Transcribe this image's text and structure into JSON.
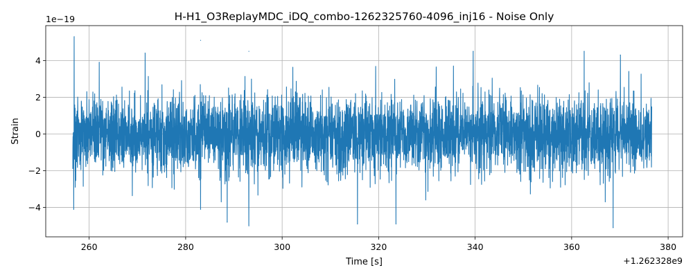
{
  "chart_data": {
    "type": "line",
    "title": "H-H1_O3ReplayMDC_iDQ_combo-1262325760-4096_inj16 - Noise Only",
    "xlabel": "Time [s]",
    "ylabel": "Strain",
    "x_offset_label": "+1.262328e9",
    "y_scale_label": "1e−19",
    "xlim": [
      251,
      383
    ],
    "ylim": [
      -5.6,
      5.9
    ],
    "x_ticks": [
      260,
      280,
      300,
      320,
      340,
      360,
      380
    ],
    "x_tick_labels": [
      "260",
      "280",
      "300",
      "320",
      "340",
      "360",
      "380"
    ],
    "y_ticks": [
      -4,
      -2,
      0,
      2,
      4
    ],
    "y_tick_labels": [
      "−4",
      "−2",
      "0",
      "2",
      "4"
    ],
    "grid": true,
    "line_color": "#1f77b4",
    "series": [
      {
        "time_range": [
          256.6,
          376.6
        ],
        "typical_envelope": [
          -1.9,
          1.9
        ],
        "peaks": [
          {
            "x": 256.9,
            "y": 5.3
          },
          {
            "x": 262.1,
            "y": 3.9
          },
          {
            "x": 271.6,
            "y": 4.4
          },
          {
            "x": 283.1,
            "y": 5.1
          },
          {
            "x": 293.1,
            "y": 4.5
          },
          {
            "x": 339.6,
            "y": 4.5
          },
          {
            "x": 362.6,
            "y": 4.5
          },
          {
            "x": 370.1,
            "y": 4.3
          }
        ],
        "troughs": [
          {
            "x": 256.8,
            "y": -4.1
          },
          {
            "x": 283.1,
            "y": -4.1
          },
          {
            "x": 288.6,
            "y": -4.8
          },
          {
            "x": 293.1,
            "y": -5.0
          },
          {
            "x": 315.6,
            "y": -4.9
          },
          {
            "x": 323.6,
            "y": -4.9
          },
          {
            "x": 368.6,
            "y": -5.1
          }
        ]
      }
    ]
  }
}
